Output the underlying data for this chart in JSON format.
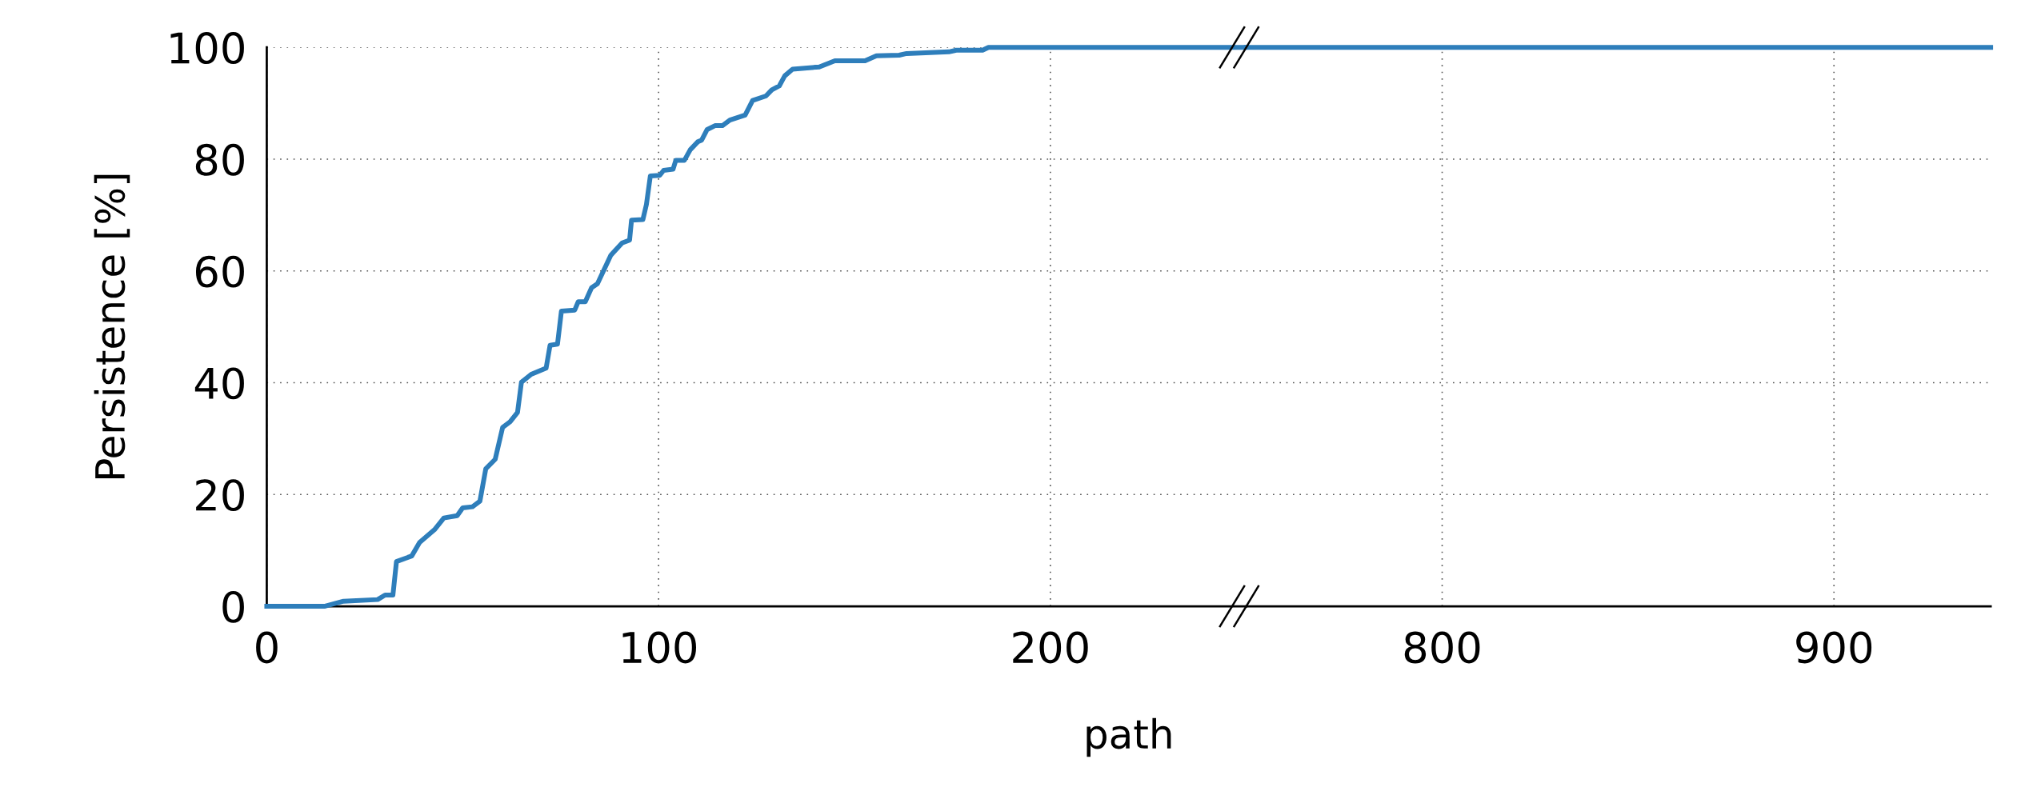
{
  "chart_data": [
    {
      "type": "line",
      "xlabel": "path",
      "ylabel": "Persistence [%]",
      "xlim": [
        0,
        250
      ],
      "ylim": [
        0,
        100
      ],
      "xticks": [
        0,
        100,
        200
      ],
      "yticks": [
        0,
        20,
        40,
        60,
        80,
        100
      ],
      "grid": true,
      "marker": "none",
      "line_style": "solid",
      "series": [
        {
          "color": "#2e7ebb",
          "x": [
            0,
            14.7,
            19.6,
            28.3,
            30.2,
            32.2,
            33.1,
            37,
            39,
            42.8,
            45.2,
            48.6,
            50,
            52.5,
            54.4,
            55.9,
            58.3,
            60.2,
            62.1,
            64,
            65,
            67.5,
            71.3,
            72.3,
            74.2,
            75.2,
            78.6,
            79.5,
            81.3,
            82.9,
            84.4,
            87.8,
            90.7,
            92.6,
            93.1,
            96,
            96.9,
            97.9,
            100.3,
            101.3,
            103.7,
            104.4,
            106.6,
            108.1,
            110,
            111,
            112.4,
            114.4,
            116.3,
            118.2,
            122.1,
            124,
            127.4,
            128.9,
            130.8,
            132.2,
            134.2,
            141,
            145,
            152.7,
            155.6,
            161.4,
            163.3,
            174.1,
            176,
            182.7,
            184.2,
            250
          ],
          "values": [
            0,
            0,
            0.9,
            1.2,
            2,
            2,
            8,
            9,
            11.4,
            13.7,
            15.8,
            16.2,
            17.6,
            17.8,
            18.8,
            24.6,
            26.3,
            32,
            33,
            34.7,
            40.1,
            41.5,
            42.6,
            46.7,
            46.9,
            52.8,
            53,
            54.5,
            54.5,
            57,
            57.7,
            62.8,
            65,
            65.5,
            69.1,
            69.2,
            71.9,
            77,
            77.1,
            78,
            78.2,
            79.8,
            79.8,
            81.7,
            83.1,
            83.4,
            85.3,
            86,
            86,
            87,
            87.9,
            90.5,
            91.3,
            92.4,
            93.1,
            94.9,
            96.1,
            96.5,
            97.6,
            97.6,
            98.5,
            98.6,
            98.9,
            99.2,
            99.5,
            99.5,
            100,
            100
          ]
        }
      ]
    },
    {
      "type": "line",
      "xlim": [
        750,
        940
      ],
      "ylim": [
        0,
        100
      ],
      "xticks": [
        800,
        900
      ],
      "yticks": [
        0,
        20,
        40,
        60,
        80,
        100
      ],
      "grid": true,
      "marker": "none",
      "line_style": "solid",
      "tick_labels": "x",
      "series": [
        {
          "color": "#2e7ebb",
          "x": [
            750,
            940
          ],
          "values": [
            100,
            100
          ]
        }
      ]
    }
  ]
}
